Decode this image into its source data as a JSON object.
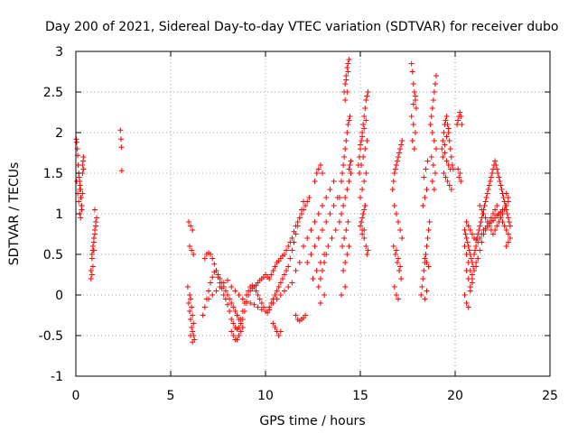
{
  "chart_data": {
    "type": "scatter",
    "title": "Day 200 of 2021, Sidereal Day-to-day VTEC variation (SDTVAR) for receiver dubo",
    "xlabel": "GPS time / hours",
    "ylabel": "SDTVAR / TECUs",
    "xlim": [
      0,
      25
    ],
    "ylim": [
      -1,
      3
    ],
    "xticks": [
      0,
      5,
      10,
      15,
      20,
      25
    ],
    "yticks": [
      -1,
      -0.5,
      0,
      0.5,
      1,
      1.5,
      2,
      2.5,
      3
    ],
    "xtick_labels": [
      "0",
      "5",
      "10",
      "15",
      "20",
      "25"
    ],
    "ytick_labels": [
      "-1",
      "-0.5",
      "0",
      "0.5",
      "1",
      "1.5",
      "2",
      "2.5",
      "3"
    ],
    "grid": true,
    "marker": "+",
    "marker_color": "#ff0000",
    "series": [
      {
        "name": "SDTVAR",
        "x": [
          0.02,
          0.05,
          0.08,
          0.1,
          0.12,
          0.15,
          0.18,
          0.2,
          0.22,
          0.25,
          0.28,
          0.3,
          0.32,
          0.35,
          0.38,
          0.4,
          0.05,
          0.1,
          0.15,
          0.2,
          0.25,
          0.3,
          0.35,
          0.4,
          0.2,
          0.25,
          0.3,
          0.35,
          0.8,
          0.85,
          0.9,
          0.95,
          1.0,
          1.05,
          1.1,
          0.85,
          0.9,
          0.95,
          1.0,
          1.05,
          0.8,
          0.9,
          1.0,
          0.85,
          0.95,
          2.35,
          2.38,
          2.4,
          2.42,
          5.9,
          5.95,
          6.0,
          6.05,
          6.1,
          6.15,
          6.2,
          6.25,
          6.0,
          6.05,
          6.1,
          6.15,
          6.2,
          5.95,
          6.05,
          6.15,
          6.0,
          6.1,
          6.2,
          6.05,
          6.15,
          6.7,
          6.8,
          6.9,
          7.0,
          7.1,
          7.2,
          7.3,
          7.4,
          7.5,
          7.6,
          7.7,
          7.8,
          7.9,
          8.0,
          8.1,
          8.2,
          8.3,
          8.4,
          8.5,
          8.6,
          8.7,
          8.8,
          8.9,
          9.0,
          9.1,
          9.2,
          9.3,
          9.4,
          9.5,
          9.6,
          9.7,
          9.8,
          9.9,
          10.0,
          10.1,
          10.2,
          10.3,
          10.4,
          10.5,
          10.6,
          10.7,
          10.8,
          10.9,
          11.0,
          11.1,
          11.2,
          11.3,
          11.4,
          11.5,
          11.6,
          11.7,
          11.8,
          11.9,
          12.0,
          12.1,
          12.2,
          12.3,
          6.8,
          6.9,
          7.0,
          7.1,
          7.2,
          7.3,
          7.4,
          7.5,
          7.6,
          7.7,
          7.8,
          7.9,
          8.0,
          8.1,
          8.2,
          8.3,
          8.4,
          8.5,
          8.6,
          8.7,
          8.8,
          8.9,
          9.0,
          9.1,
          9.2,
          9.3,
          9.4,
          9.5,
          9.6,
          9.7,
          9.8,
          9.9,
          10.0,
          10.1,
          10.2,
          10.3,
          10.4,
          10.5,
          10.6,
          10.7,
          10.8,
          10.9,
          11.0,
          11.1,
          11.2,
          11.3,
          11.4,
          11.5,
          11.6,
          11.7,
          11.8,
          11.9,
          12.0,
          7.0,
          7.2,
          7.4,
          7.6,
          7.8,
          8.0,
          8.2,
          8.4,
          8.6,
          8.8,
          9.0,
          9.2,
          9.4,
          9.6,
          9.8,
          10.0,
          10.2,
          10.4,
          10.6,
          10.8,
          11.0,
          11.2,
          11.4,
          11.6,
          11.8,
          8.2,
          8.3,
          8.4,
          8.5,
          8.6,
          8.7,
          8.8,
          10.4,
          10.5,
          10.6,
          10.7,
          10.8,
          11.6,
          11.7,
          11.8,
          11.9,
          12.0,
          12.1,
          12.0,
          12.2,
          12.4,
          12.6,
          12.8,
          13.0,
          13.2,
          13.4,
          13.6,
          12.2,
          12.4,
          12.6,
          12.8,
          13.0,
          13.2,
          13.4,
          13.6,
          13.8,
          12.5,
          12.7,
          12.9,
          13.1,
          13.3,
          13.5,
          13.7,
          12.6,
          12.7,
          12.8,
          12.9,
          13.0,
          12.8,
          12.9,
          13.0,
          13.1,
          13.2,
          12.9,
          13.1,
          13.9,
          14.0,
          14.05,
          14.1,
          14.15,
          14.2,
          14.25,
          14.3,
          14.35,
          14.4,
          14.45,
          13.9,
          14.0,
          14.1,
          14.2,
          14.3,
          14.4,
          14.5,
          14.05,
          14.15,
          14.25,
          14.35,
          14.1,
          14.2,
          14.3,
          14.4,
          14.0,
          14.2,
          14.15,
          14.2,
          14.25,
          14.3,
          14.35,
          14.4,
          14.2,
          14.3,
          14.25,
          14.35,
          14.4,
          14.45,
          14.5,
          14.9,
          14.95,
          15.0,
          15.05,
          15.1,
          15.15,
          15.2,
          15.25,
          15.3,
          15.35,
          15.4,
          14.95,
          15.05,
          15.15,
          15.25,
          15.35,
          15.0,
          15.1,
          15.2,
          15.3,
          15.05,
          15.15,
          15.25,
          15.1,
          15.2,
          15.3,
          15.35,
          15.4,
          15.0,
          15.1,
          15.2,
          15.3,
          15.0,
          15.05,
          15.1,
          15.15,
          15.2,
          15.25,
          15.1,
          15.2,
          16.7,
          16.75,
          16.8,
          16.85,
          16.9,
          16.95,
          17.0,
          17.05,
          17.1,
          17.15,
          17.2,
          16.8,
          16.9,
          17.0,
          17.1,
          17.2,
          16.75,
          16.85,
          16.95,
          17.05,
          17.15,
          16.8,
          16.9,
          17.0,
          16.9,
          17.0,
          17.1,
          17.7,
          17.75,
          17.8,
          17.85,
          17.9,
          17.95,
          17.7,
          17.8,
          17.9,
          17.75,
          17.85,
          17.8,
          17.9,
          18.2,
          18.25,
          18.3,
          18.35,
          18.4,
          18.45,
          18.5,
          18.55,
          18.6,
          18.65,
          18.3,
          18.4,
          18.5,
          18.35,
          18.45,
          18.55,
          18.4,
          18.5,
          18.4,
          18.5,
          18.6,
          18.7,
          18.75,
          18.8,
          18.85,
          18.9,
          18.95,
          19.0,
          18.8,
          18.9,
          19.0,
          18.75,
          18.85,
          18.95,
          18.8,
          18.9,
          19.3,
          19.35,
          19.4,
          19.45,
          19.5,
          19.55,
          19.6,
          19.65,
          19.7,
          19.75,
          19.8,
          19.85,
          19.9,
          19.35,
          19.45,
          19.55,
          19.65,
          19.75,
          19.4,
          19.5,
          19.6,
          19.7,
          19.8,
          19.45,
          19.55,
          19.65,
          20.1,
          20.15,
          20.2,
          20.25,
          20.3,
          20.35,
          20.15,
          20.25,
          20.2,
          20.3,
          20.5,
          20.55,
          20.6,
          20.65,
          20.7,
          20.75,
          20.8,
          20.85,
          20.9,
          20.95,
          21.0,
          21.05,
          21.1,
          21.15,
          21.2,
          21.25,
          21.3,
          21.35,
          21.4,
          21.45,
          21.5,
          21.55,
          21.6,
          21.65,
          21.7,
          21.75,
          21.8,
          21.85,
          21.9,
          21.95,
          22.0,
          22.05,
          22.1,
          22.15,
          22.2,
          22.25,
          22.3,
          22.35,
          22.4,
          22.45,
          22.5,
          22.55,
          22.6,
          22.65,
          22.7,
          22.75,
          22.8,
          22.85,
          22.9,
          20.5,
          20.6,
          20.7,
          20.8,
          20.9,
          21.0,
          21.1,
          21.2,
          21.3,
          21.4,
          21.5,
          21.6,
          21.7,
          21.8,
          21.9,
          22.0,
          22.1,
          22.2,
          22.3,
          22.4,
          22.5,
          22.6,
          22.7,
          22.8,
          21.3,
          21.4,
          21.5,
          21.6,
          21.7,
          21.8,
          21.9,
          22.0,
          22.1,
          22.2,
          22.3,
          22.4,
          22.5,
          22.6,
          22.7,
          22.8,
          20.6,
          20.7,
          20.8,
          20.9,
          21.0,
          21.1,
          21.2,
          21.3,
          21.4,
          21.5,
          21.6,
          21.7,
          21.8,
          21.9,
          22.0,
          22.1,
          22.2,
          22.3,
          22.4,
          22.5,
          20.6,
          20.7,
          20.8,
          20.9,
          21.0,
          21.1,
          21.2,
          20.5,
          20.6,
          20.7,
          20.8,
          20.9,
          22.7,
          22.8,
          22.9,
          22.8,
          22.7
        ],
        "y": [
          1.92,
          1.88,
          1.8,
          1.72,
          1.6,
          1.5,
          1.45,
          1.4,
          1.35,
          1.3,
          1.2,
          1.1,
          1.05,
          1.6,
          1.65,
          1.7,
          1.4,
          1.25,
          1.15,
          1.3,
          1.2,
          1.1,
          1.5,
          1.55,
          1.0,
          0.95,
          1.05,
          1.25,
          0.3,
          0.45,
          0.55,
          0.65,
          0.75,
          0.85,
          0.95,
          0.5,
          0.6,
          0.7,
          0.8,
          0.9,
          0.2,
          0.35,
          1.05,
          0.25,
          0.55,
          2.03,
          1.92,
          1.82,
          1.53,
          0.1,
          -0.1,
          -0.2,
          -0.3,
          -0.4,
          -0.45,
          -0.5,
          -0.55,
          0.0,
          -0.05,
          -0.15,
          -0.25,
          -0.35,
          0.9,
          0.85,
          0.8,
          0.6,
          0.55,
          0.5,
          -0.5,
          -0.58,
          -0.25,
          -0.15,
          -0.05,
          0.05,
          0.15,
          0.22,
          0.28,
          0.3,
          0.22,
          0.15,
          0.08,
          0.0,
          -0.05,
          -0.12,
          -0.2,
          -0.3,
          -0.35,
          -0.4,
          -0.42,
          -0.4,
          -0.35,
          -0.3,
          -0.2,
          -0.1,
          0.0,
          0.05,
          0.08,
          0.1,
          0.12,
          0.15,
          0.18,
          0.2,
          0.22,
          0.25,
          0.22,
          0.2,
          0.25,
          0.3,
          0.35,
          0.4,
          0.42,
          0.45,
          0.48,
          0.5,
          0.55,
          0.6,
          0.65,
          0.7,
          0.78,
          0.85,
          0.9,
          0.95,
          1.0,
          1.05,
          1.1,
          1.15,
          1.2,
          0.45,
          0.5,
          0.52,
          0.5,
          0.45,
          0.38,
          0.3,
          0.25,
          0.2,
          0.15,
          0.1,
          0.05,
          0.0,
          -0.05,
          -0.1,
          -0.15,
          -0.2,
          -0.25,
          -0.3,
          -0.3,
          -0.2,
          -0.1,
          0.0,
          0.05,
          0.1,
          0.12,
          0.1,
          0.05,
          0.0,
          -0.05,
          -0.1,
          -0.15,
          -0.2,
          -0.22,
          -0.18,
          -0.1,
          -0.05,
          0.0,
          0.05,
          0.1,
          0.15,
          0.2,
          0.25,
          0.3,
          0.35,
          0.45,
          0.55,
          0.65,
          0.75,
          0.85,
          0.95,
          1.05,
          1.15,
          -0.05,
          0.0,
          0.05,
          0.1,
          0.15,
          0.18,
          0.1,
          0.05,
          0.0,
          -0.05,
          -0.08,
          -0.1,
          -0.12,
          -0.15,
          -0.18,
          -0.2,
          -0.15,
          -0.1,
          -0.05,
          0.0,
          0.05,
          0.1,
          0.15,
          0.3,
          0.4,
          -0.45,
          -0.5,
          -0.55,
          -0.55,
          -0.5,
          -0.45,
          -0.4,
          -0.35,
          -0.4,
          -0.45,
          -0.5,
          -0.45,
          -0.25,
          -0.3,
          -0.32,
          -0.3,
          -0.28,
          -0.25,
          0.6,
          0.7,
          0.8,
          0.9,
          1.0,
          1.1,
          1.2,
          1.3,
          1.4,
          0.4,
          0.5,
          0.6,
          0.7,
          0.8,
          0.9,
          1.0,
          1.1,
          1.2,
          0.2,
          0.3,
          0.4,
          0.5,
          0.6,
          0.7,
          0.8,
          1.4,
          1.5,
          1.55,
          1.6,
          1.5,
          0.1,
          0.2,
          0.3,
          0.4,
          0.5,
          -0.1,
          0.0,
          1.2,
          1.4,
          1.5,
          1.6,
          1.7,
          1.8,
          1.9,
          2.0,
          2.1,
          2.15,
          2.2,
          0.9,
          1.0,
          1.1,
          1.2,
          1.3,
          1.4,
          1.5,
          0.6,
          0.7,
          0.8,
          0.9,
          0.3,
          0.4,
          0.5,
          0.6,
          0.0,
          0.1,
          2.5,
          2.6,
          2.7,
          2.8,
          2.85,
          2.9,
          2.4,
          2.5,
          2.65,
          2.75,
          1.55,
          1.6,
          1.65,
          1.6,
          1.7,
          1.8,
          1.9,
          2.0,
          2.1,
          2.2,
          2.3,
          2.4,
          2.45,
          2.5,
          1.5,
          1.6,
          1.7,
          1.8,
          1.9,
          1.2,
          1.3,
          1.4,
          1.5,
          0.9,
          1.0,
          1.1,
          0.8,
          0.7,
          0.6,
          0.5,
          0.55,
          1.85,
          1.95,
          2.05,
          2.15,
          0.85,
          0.9,
          0.95,
          1.0,
          1.05,
          1.1,
          0.75,
          0.8,
          1.3,
          1.4,
          1.5,
          1.55,
          1.6,
          1.65,
          1.7,
          1.75,
          1.8,
          1.85,
          1.9,
          1.1,
          1.0,
          0.9,
          0.8,
          0.7,
          0.6,
          0.5,
          0.4,
          0.3,
          0.2,
          0.1,
          0.0,
          -0.05,
          0.55,
          0.45,
          0.35,
          2.85,
          2.75,
          2.6,
          2.5,
          2.4,
          2.3,
          2.2,
          2.1,
          2.0,
          1.9,
          1.8,
          2.35,
          2.45,
          0.0,
          0.1,
          0.2,
          0.3,
          0.4,
          0.5,
          0.6,
          0.7,
          0.8,
          0.9,
          1.1,
          1.2,
          1.3,
          1.45,
          1.55,
          1.65,
          -0.05,
          0.05,
          0.45,
          0.4,
          0.35,
          2.1,
          2.2,
          2.3,
          2.4,
          2.5,
          2.6,
          2.7,
          2.0,
          1.9,
          1.8,
          1.7,
          1.6,
          1.5,
          1.4,
          1.3,
          1.8,
          1.9,
          2.0,
          2.1,
          2.15,
          2.2,
          2.1,
          2.0,
          1.9,
          1.8,
          1.7,
          1.6,
          1.55,
          1.7,
          1.75,
          1.65,
          1.6,
          1.55,
          1.5,
          1.45,
          1.4,
          1.35,
          1.3,
          1.85,
          1.95,
          2.05,
          2.1,
          2.15,
          2.2,
          2.25,
          2.2,
          2.1,
          1.55,
          1.5,
          1.45,
          1.4,
          0.8,
          0.75,
          0.7,
          0.65,
          0.6,
          0.55,
          0.5,
          0.45,
          0.4,
          0.35,
          0.5,
          0.55,
          0.6,
          0.7,
          0.75,
          0.8,
          0.85,
          0.9,
          0.95,
          1.0,
          1.05,
          1.1,
          1.15,
          1.2,
          1.25,
          1.3,
          1.35,
          1.4,
          1.45,
          1.5,
          1.55,
          1.6,
          1.65,
          1.6,
          1.55,
          1.5,
          1.45,
          1.4,
          1.35,
          1.3,
          1.25,
          1.2,
          1.15,
          1.1,
          1.05,
          1.0,
          0.95,
          0.9,
          0.85,
          0.6,
          0.5,
          0.4,
          0.3,
          0.25,
          0.3,
          0.35,
          0.45,
          0.55,
          0.65,
          0.75,
          0.8,
          0.85,
          0.9,
          0.95,
          1.0,
          1.05,
          1.1,
          1.0,
          0.95,
          0.9,
          0.85,
          0.8,
          0.75,
          1.1,
          1.05,
          1.0,
          0.95,
          0.9,
          0.85,
          0.8,
          0.75,
          0.8,
          0.85,
          0.9,
          0.95,
          1.0,
          1.05,
          1.1,
          1.15,
          0.9,
          0.85,
          0.8,
          0.75,
          0.7,
          0.68,
          0.65,
          0.7,
          0.75,
          0.8,
          0.82,
          0.85,
          0.88,
          0.9,
          0.92,
          0.95,
          0.98,
          1.0,
          1.02,
          1.05,
          0.3,
          0.2,
          0.1,
          0.2,
          0.3,
          0.4,
          0.45,
          0.0,
          -0.1,
          -0.15,
          0.05,
          0.15,
          0.6,
          0.65,
          0.7,
          1.2,
          1.25
        ]
      }
    ]
  }
}
